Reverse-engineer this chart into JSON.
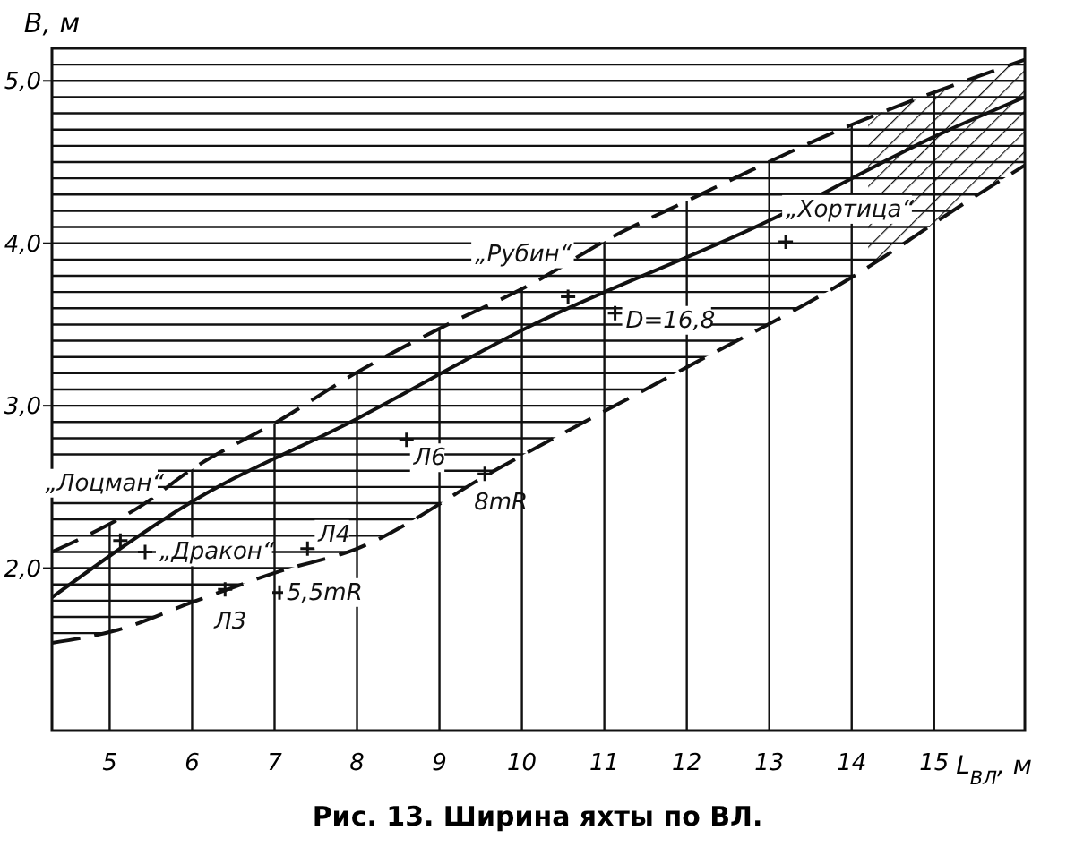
{
  "chart_data": {
    "type": "line",
    "title": "Рис. 13. Ширина яхты по ВЛ.",
    "xlabel": "L$_{ВЛ}$, м",
    "ylabel": "B, м",
    "xlim": [
      4.3,
      16.1
    ],
    "ylim": [
      1.0,
      5.2
    ],
    "xticks": [
      5,
      6,
      7,
      8,
      9,
      10,
      11,
      12,
      13,
      14,
      15
    ],
    "yticks": [
      {
        "value": 1.6,
        "label": null
      },
      {
        "value": 1.7,
        "label": null
      },
      {
        "value": 1.8,
        "label": null
      },
      {
        "value": 1.9,
        "label": null
      },
      {
        "value": 2.0,
        "label": "2,0"
      },
      {
        "value": 2.1,
        "label": null
      },
      {
        "value": 2.2,
        "label": null
      },
      {
        "value": 2.3,
        "label": null
      },
      {
        "value": 2.4,
        "label": null
      },
      {
        "value": 2.5,
        "label": null
      },
      {
        "value": 2.6,
        "label": null
      },
      {
        "value": 2.7,
        "label": null
      },
      {
        "value": 2.8,
        "label": null
      },
      {
        "value": 2.9,
        "label": null
      },
      {
        "value": 3.0,
        "label": "3,0"
      },
      {
        "value": 3.1,
        "label": null
      },
      {
        "value": 3.2,
        "label": null
      },
      {
        "value": 3.3,
        "label": null
      },
      {
        "value": 3.4,
        "label": null
      },
      {
        "value": 3.5,
        "label": null
      },
      {
        "value": 3.6,
        "label": null
      },
      {
        "value": 3.7,
        "label": null
      },
      {
        "value": 3.8,
        "label": null
      },
      {
        "value": 3.9,
        "label": null
      },
      {
        "value": 4.0,
        "label": "4,0"
      },
      {
        "value": 4.1,
        "label": null
      },
      {
        "value": 4.2,
        "label": null
      },
      {
        "value": 4.3,
        "label": null
      },
      {
        "value": 4.4,
        "label": null
      },
      {
        "value": 4.5,
        "label": null
      },
      {
        "value": 4.6,
        "label": null
      },
      {
        "value": 4.7,
        "label": null
      },
      {
        "value": 4.8,
        "label": null
      },
      {
        "value": 4.9,
        "label": null
      },
      {
        "value": 5.0,
        "label": "5,0"
      },
      {
        "value": 5.1,
        "label": null
      }
    ],
    "grid": true,
    "series": [
      {
        "line_style": "dashed",
        "color": "#111111",
        "x": [
          4.3,
          4.6,
          5.4,
          6.0,
          7.06,
          7.98,
          9.06,
          10.08,
          11.1,
          12.0,
          14.0,
          16.1
        ],
        "values": [
          2.1,
          2.17,
          2.39,
          2.61,
          2.91,
          3.2,
          3.49,
          3.74,
          4.04,
          4.26,
          4.73,
          5.13
        ]
      },
      {
        "line_style": "solid",
        "color": "#111111",
        "x": [
          4.3,
          6.0,
          8.0,
          10.1,
          13.0,
          15.1,
          16.1
        ],
        "values": [
          1.82,
          2.41,
          2.92,
          3.49,
          4.14,
          4.68,
          4.9
        ]
      },
      {
        "line_style": "dashed",
        "color": "#111111",
        "x": [
          4.3,
          5.1,
          6.0,
          7.06,
          8.0,
          9.7,
          11.9,
          14.0,
          15.5,
          16.1
        ],
        "values": [
          1.54,
          1.62,
          1.79,
          1.98,
          2.12,
          2.61,
          3.21,
          3.79,
          4.29,
          4.48
        ]
      },
      {
        "type": "scatter",
        "marker": "cross",
        "color": "#111111",
        "x": [
          5.13,
          5.43,
          6.4,
          7.06,
          7.4,
          8.6,
          9.55,
          10.56,
          11.13,
          13.2
        ],
        "values": [
          2.17,
          2.1,
          1.87,
          1.85,
          2.12,
          2.79,
          2.58,
          3.67,
          3.57,
          4.01
        ]
      }
    ],
    "bands": [
      {
        "axis": "x",
        "from": 14.2,
        "to": 16.1
      }
    ],
    "annotations": [
      {
        "text": "„Лоцман“",
        "x": 5.13,
        "y": 2.17
      },
      {
        "text": "„Дракон“",
        "x": 5.43,
        "y": 2.1
      },
      {
        "text": "Л3",
        "x": 6.4,
        "y": 1.87
      },
      {
        "text": "5,5mR",
        "x": 7.06,
        "y": 1.85
      },
      {
        "text": "Л4",
        "x": 7.4,
        "y": 2.12
      },
      {
        "text": "Л6",
        "x": 8.6,
        "y": 2.79
      },
      {
        "text": "8mR",
        "x": 9.55,
        "y": 2.58
      },
      {
        "text": "„Рубин“",
        "x": 10.56,
        "y": 3.67
      },
      {
        "text": "D=16,8",
        "x": 11.13,
        "y": 3.57
      },
      {
        "text": "„Хортица“",
        "x": 13.2,
        "y": 4.01
      }
    ]
  }
}
